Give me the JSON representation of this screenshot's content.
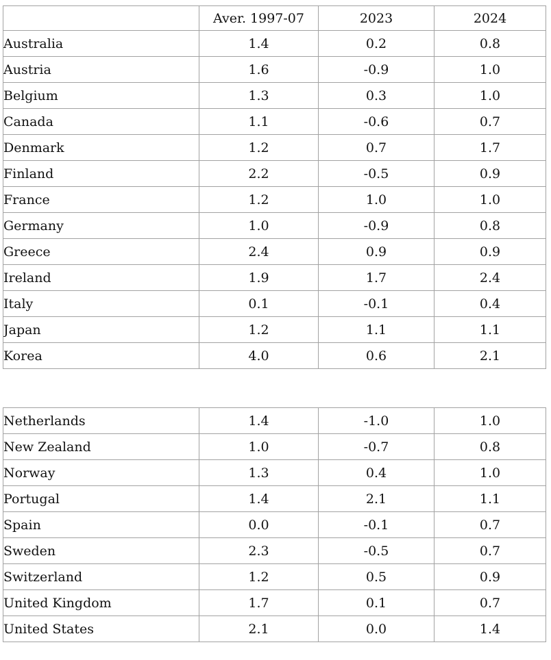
{
  "page": {
    "background_color": "#ffffff",
    "border_color": "#a2a2a2",
    "text_color": "#111111"
  },
  "chart_data": {
    "type": "table",
    "columns": [
      "",
      "Aver. 1997-07",
      "2023",
      "2024"
    ],
    "sections": [
      {
        "name": "upper",
        "has_header_row": true,
        "rows": [
          [
            "Australia",
            "1.4",
            "0.2",
            "0.8"
          ],
          [
            "Austria",
            "1.6",
            "-0.9",
            "1.0"
          ],
          [
            "Belgium",
            "1.3",
            "0.3",
            "1.0"
          ],
          [
            "Canada",
            "1.1",
            "-0.6",
            "0.7"
          ],
          [
            "Denmark",
            "1.2",
            "0.7",
            "1.7"
          ],
          [
            "Finland",
            "2.2",
            "-0.5",
            "0.9"
          ],
          [
            "France",
            "1.2",
            "1.0",
            "1.0"
          ],
          [
            "Germany",
            "1.0",
            "-0.9",
            "0.8"
          ],
          [
            "Greece",
            "2.4",
            "0.9",
            "0.9"
          ],
          [
            "Ireland",
            "1.9",
            "1.7",
            "2.4"
          ],
          [
            "Italy",
            "0.1",
            "-0.1",
            "0.4"
          ],
          [
            "Japan",
            "1.2",
            "1.1",
            "1.1"
          ],
          [
            "Korea",
            "4.0",
            "0.6",
            "2.1"
          ]
        ]
      },
      {
        "name": "lower",
        "has_header_row": false,
        "rows": [
          [
            "Netherlands",
            "1.4",
            "-1.0",
            "1.0"
          ],
          [
            "New Zealand",
            "1.0",
            "-0.7",
            "0.8"
          ],
          [
            "Norway",
            "1.3",
            "0.4",
            "1.0"
          ],
          [
            "Portugal",
            "1.4",
            "2.1",
            "1.1"
          ],
          [
            "Spain",
            "0.0",
            "-0.1",
            "0.7"
          ],
          [
            "Sweden",
            "2.3",
            "-0.5",
            "0.7"
          ],
          [
            "Switzerland",
            "1.2",
            "0.5",
            "0.9"
          ],
          [
            "United Kingdom",
            "1.7",
            "0.1",
            "0.7"
          ],
          [
            "United States",
            "2.1",
            "0.0",
            "1.4"
          ]
        ]
      }
    ]
  }
}
